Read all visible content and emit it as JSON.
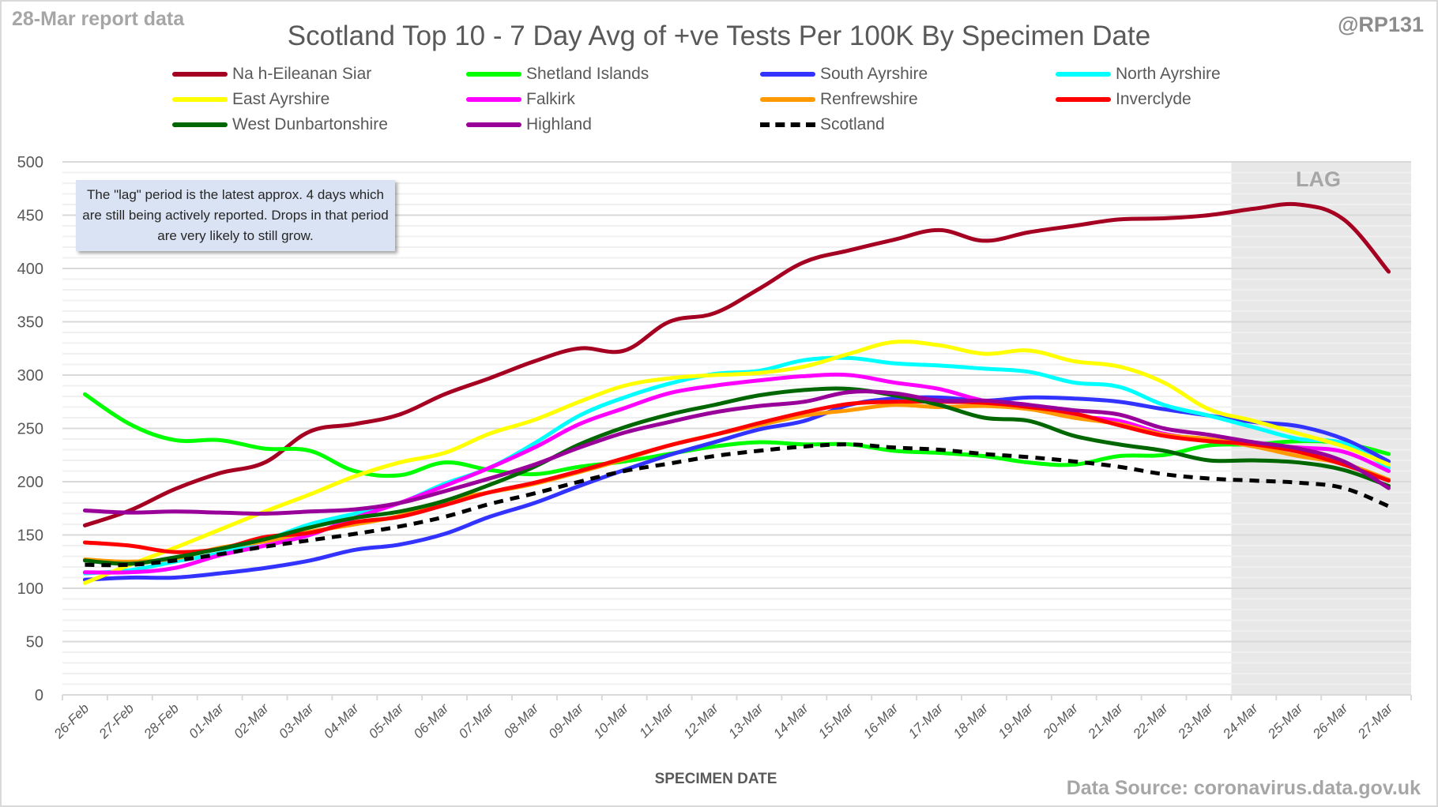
{
  "header": {
    "report_date": "28-Mar report data",
    "title": "Scotland Top 10 - 7 Day Avg of +ve Tests Per 100K By Specimen Date",
    "handle": "@RP131"
  },
  "annotation": {
    "note": "The \"lag\" period is the latest approx. 4 days which are still being actively reported. Drops in that period are very likely to still grow.",
    "lag_label": "LAG"
  },
  "footer": {
    "source": "Data Source: coronavirus.data.gov.uk"
  },
  "chart_data": {
    "type": "line",
    "title": "Scotland Top 10 - 7 Day Avg of +ve Tests Per 100K By Specimen Date",
    "xlabel": "SPECIMEN DATE",
    "ylabel": "",
    "ylim": [
      0,
      500
    ],
    "yticks": [
      0,
      50,
      100,
      150,
      200,
      250,
      300,
      350,
      400,
      450,
      500
    ],
    "minor_grid_step": 10,
    "grid": true,
    "legend_position": "top",
    "lag_period": {
      "start": "24-Mar",
      "end": "27-Mar",
      "label": "LAG",
      "color": "#e8e8e8"
    },
    "x": [
      "26-Feb",
      "27-Feb",
      "28-Feb",
      "01-Mar",
      "02-Mar",
      "03-Mar",
      "04-Mar",
      "05-Mar",
      "06-Mar",
      "07-Mar",
      "08-Mar",
      "09-Mar",
      "10-Mar",
      "11-Mar",
      "12-Mar",
      "13-Mar",
      "14-Mar",
      "15-Mar",
      "16-Mar",
      "17-Mar",
      "18-Mar",
      "19-Mar",
      "20-Mar",
      "21-Mar",
      "22-Mar",
      "23-Mar",
      "24-Mar",
      "25-Mar",
      "26-Mar",
      "27-Mar"
    ],
    "series": [
      {
        "name": "Na h-Eileanan Siar",
        "color": "#a50021",
        "dashed": false,
        "values": [
          159,
          173,
          193,
          208,
          218,
          247,
          254,
          263,
          282,
          297,
          313,
          325,
          323,
          350,
          358,
          381,
          406,
          417,
          427,
          436,
          426,
          434,
          440,
          446,
          447,
          450,
          456,
          460,
          446,
          397
        ]
      },
      {
        "name": "Shetland Islands",
        "color": "#00ff00",
        "dashed": false,
        "values": [
          282,
          254,
          239,
          239,
          231,
          229,
          210,
          206,
          218,
          211,
          207,
          214,
          219,
          226,
          233,
          237,
          235,
          235,
          229,
          227,
          224,
          218,
          216,
          224,
          225,
          234,
          235,
          238,
          236,
          226
        ]
      },
      {
        "name": "South Ayrshire",
        "color": "#3333ff",
        "dashed": false,
        "values": [
          108,
          110,
          110,
          114,
          119,
          126,
          136,
          141,
          151,
          167,
          180,
          196,
          211,
          225,
          237,
          249,
          257,
          272,
          278,
          279,
          276,
          279,
          278,
          275,
          268,
          262,
          256,
          252,
          240,
          219
        ]
      },
      {
        "name": "North Ayrshire",
        "color": "#00ffff",
        "dashed": false,
        "values": [
          114,
          117,
          125,
          133,
          145,
          160,
          170,
          180,
          198,
          213,
          236,
          262,
          279,
          292,
          301,
          304,
          314,
          316,
          311,
          309,
          306,
          303,
          293,
          289,
          272,
          262,
          251,
          240,
          236,
          213
        ]
      },
      {
        "name": "East Ayrshire",
        "color": "#ffff00",
        "dashed": false,
        "values": [
          105,
          122,
          138,
          155,
          172,
          188,
          205,
          218,
          227,
          245,
          258,
          275,
          290,
          297,
          300,
          302,
          308,
          320,
          331,
          328,
          320,
          323,
          313,
          308,
          293,
          268,
          257,
          245,
          233,
          216
        ]
      },
      {
        "name": "Falkirk",
        "color": "#ff00ff",
        "dashed": false,
        "values": [
          115,
          115,
          119,
          131,
          140,
          150,
          166,
          180,
          196,
          213,
          232,
          254,
          269,
          283,
          290,
          295,
          299,
          300,
          293,
          287,
          276,
          272,
          262,
          257,
          245,
          239,
          235,
          232,
          228,
          210
        ]
      },
      {
        "name": "Renfrewshire",
        "color": "#ff9900",
        "dashed": false,
        "values": [
          127,
          125,
          128,
          138,
          144,
          153,
          160,
          168,
          182,
          190,
          198,
          209,
          221,
          234,
          244,
          253,
          262,
          267,
          272,
          270,
          271,
          268,
          260,
          254,
          244,
          240,
          233,
          224,
          217,
          202
        ]
      },
      {
        "name": "Inverclyde",
        "color": "#ff0000",
        "dashed": false,
        "values": [
          143,
          140,
          134,
          137,
          148,
          152,
          162,
          167,
          178,
          190,
          199,
          210,
          222,
          234,
          244,
          255,
          265,
          273,
          275,
          275,
          274,
          270,
          264,
          253,
          243,
          238,
          235,
          228,
          216,
          201
        ]
      },
      {
        "name": "West Dunbartonshire",
        "color": "#006600",
        "dashed": false,
        "values": [
          126,
          123,
          129,
          137,
          146,
          157,
          166,
          172,
          182,
          197,
          214,
          235,
          251,
          263,
          272,
          281,
          286,
          287,
          281,
          272,
          260,
          257,
          243,
          235,
          229,
          220,
          220,
          218,
          211,
          196
        ]
      },
      {
        "name": "Highland",
        "color": "#990099",
        "dashed": false,
        "values": [
          173,
          171,
          172,
          171,
          170,
          172,
          174,
          180,
          191,
          203,
          216,
          232,
          246,
          256,
          265,
          271,
          275,
          284,
          283,
          276,
          276,
          272,
          267,
          263,
          250,
          244,
          237,
          231,
          219,
          194
        ]
      },
      {
        "name": "Scotland",
        "color": "#000000",
        "dashed": true,
        "values": [
          122,
          122,
          126,
          132,
          139,
          145,
          151,
          158,
          167,
          179,
          189,
          200,
          210,
          217,
          224,
          229,
          233,
          235,
          232,
          230,
          226,
          223,
          219,
          214,
          207,
          203,
          201,
          199,
          194,
          177
        ]
      }
    ]
  }
}
